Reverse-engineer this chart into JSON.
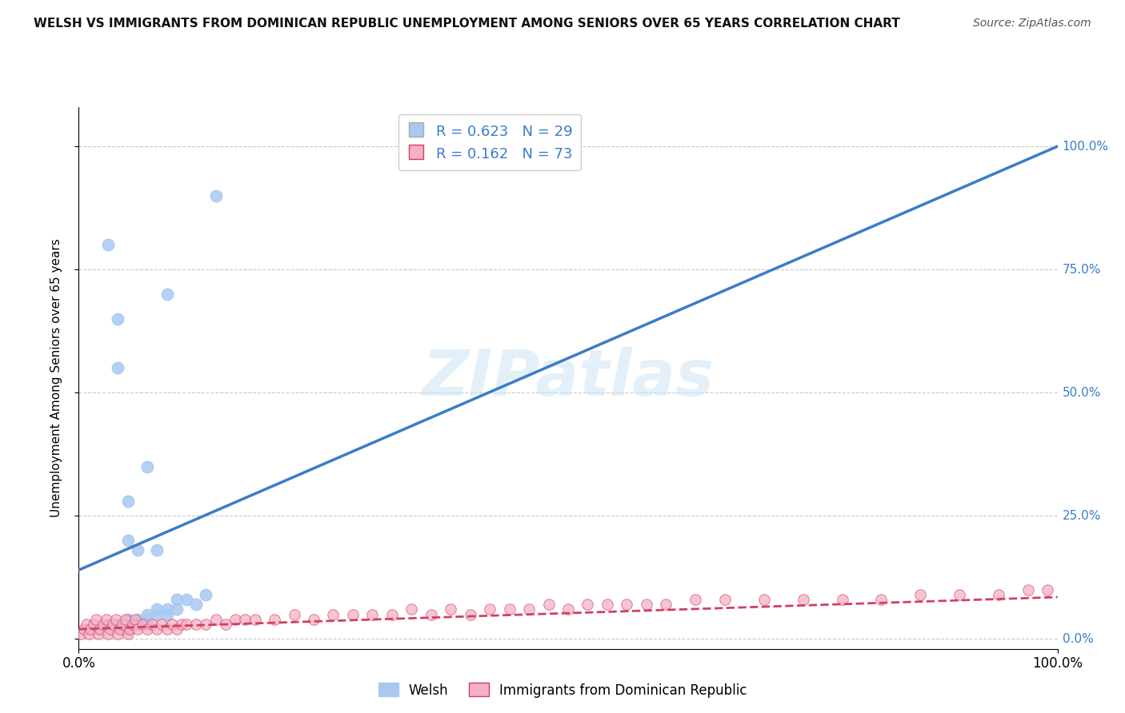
{
  "title": "WELSH VS IMMIGRANTS FROM DOMINICAN REPUBLIC UNEMPLOYMENT AMONG SENIORS OVER 65 YEARS CORRELATION CHART",
  "source": "Source: ZipAtlas.com",
  "ylabel": "Unemployment Among Seniors over 65 years",
  "watermark": "ZIPatlas",
  "welsh_color": "#a8c8f0",
  "welsh_line_color": "#3a7cc9",
  "dr_color": "#f5b0c5",
  "dr_line_color": "#d04060",
  "welsh_R": 0.623,
  "welsh_N": 29,
  "dr_R": 0.162,
  "dr_N": 73,
  "legend_label_welsh": "Welsh",
  "legend_label_dr": "Immigrants from Dominican Republic",
  "ytick_values": [
    0,
    25,
    50,
    75,
    100
  ],
  "xlim": [
    0,
    100
  ],
  "ylim": [
    -2,
    108
  ],
  "welsh_line_x0": 0,
  "welsh_line_y0": 14,
  "welsh_line_x1": 100,
  "welsh_line_y1": 100,
  "dr_line_x0": 0,
  "dr_line_y0": 2.0,
  "dr_line_x1": 100,
  "dr_line_y1": 8.5,
  "background_color": "#ffffff",
  "grid_color": "#bbbbbb",
  "note_welsh_x": [
    2,
    3,
    3,
    4,
    4,
    4,
    5,
    5,
    5,
    5,
    6,
    6,
    6,
    7,
    7,
    7,
    7,
    8,
    8,
    8,
    9,
    9,
    9,
    10,
    10,
    11,
    12,
    13,
    14
  ],
  "note_welsh_y": [
    2,
    3,
    80,
    3,
    55,
    65,
    2,
    4,
    20,
    28,
    3,
    4,
    18,
    3,
    4,
    5,
    35,
    5,
    6,
    18,
    5,
    6,
    70,
    6,
    8,
    8,
    7,
    9,
    90
  ],
  "note_dr_x": [
    0.2,
    0.5,
    0.8,
    1.0,
    1.2,
    1.5,
    1.8,
    2.0,
    2.2,
    2.5,
    2.8,
    3.0,
    3.2,
    3.5,
    3.8,
    4.0,
    4.2,
    4.5,
    4.8,
    5.0,
    5.2,
    5.5,
    5.8,
    6.0,
    6.5,
    7.0,
    7.5,
    8.0,
    8.5,
    9.0,
    9.5,
    10.0,
    10.5,
    11.0,
    12.0,
    13.0,
    14.0,
    15.0,
    16.0,
    17.0,
    18.0,
    20.0,
    22.0,
    24.0,
    26.0,
    28.0,
    30.0,
    32.0,
    34.0,
    36.0,
    38.0,
    40.0,
    42.0,
    44.0,
    46.0,
    48.0,
    50.0,
    52.0,
    54.0,
    56.0,
    58.0,
    60.0,
    63.0,
    66.0,
    70.0,
    74.0,
    78.0,
    82.0,
    86.0,
    90.0,
    94.0,
    97.0,
    99.0
  ],
  "note_dr_y": [
    1,
    2,
    3,
    1,
    2,
    3,
    4,
    1,
    2,
    3,
    4,
    1,
    2,
    3,
    4,
    1,
    2,
    3,
    4,
    1,
    2,
    3,
    4,
    2,
    3,
    2,
    3,
    2,
    3,
    2,
    3,
    2,
    3,
    3,
    3,
    3,
    4,
    3,
    4,
    4,
    4,
    4,
    5,
    4,
    5,
    5,
    5,
    5,
    6,
    5,
    6,
    5,
    6,
    6,
    6,
    7,
    6,
    7,
    7,
    7,
    7,
    7,
    8,
    8,
    8,
    8,
    8,
    8,
    9,
    9,
    9,
    10,
    10
  ]
}
